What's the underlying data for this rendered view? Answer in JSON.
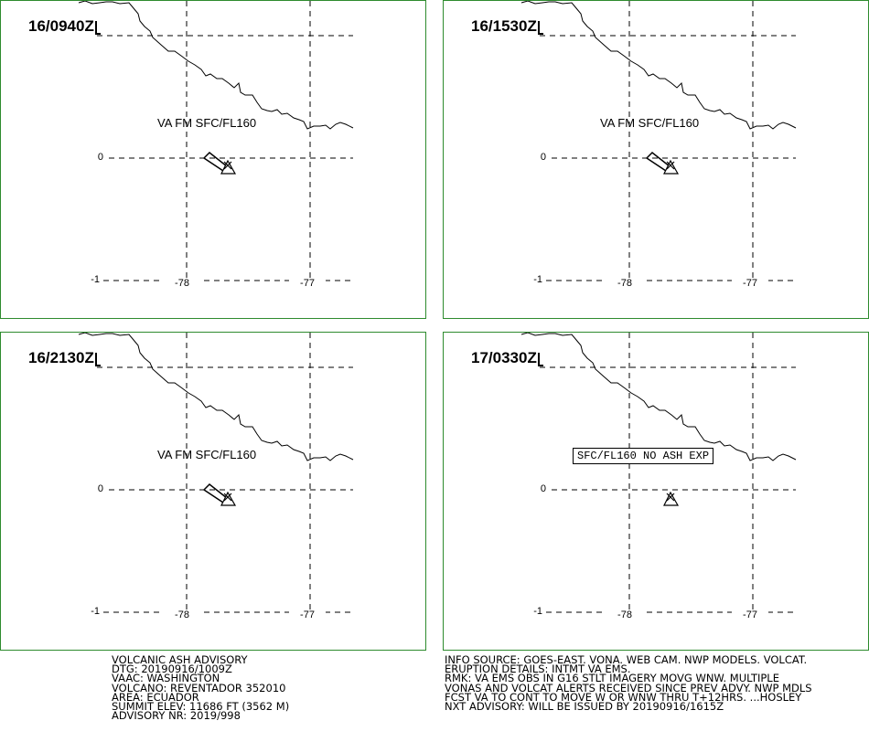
{
  "panels": [
    {
      "time": "16/0940Z",
      "label": "VA FM SFC/FL160",
      "type": "plume"
    },
    {
      "time": "16/1530Z",
      "label": "VA FM SFC/FL160",
      "type": "plume"
    },
    {
      "time": "16/2130Z",
      "label": "VA FM SFC/FL160",
      "type": "plume"
    },
    {
      "time": "17/0330Z",
      "label": "SFC/FL160 NO ASH EXP",
      "type": "noash"
    }
  ],
  "axes": {
    "lat_labels": [
      "0",
      "-1"
    ],
    "lon_labels": [
      "-78",
      "-77"
    ]
  },
  "advisory_left": [
    "VOLCANIC ASH ADVISORY",
    "DTG: 20190916/1009Z",
    "VAAC: WASHINGTON",
    "VOLCANO: REVENTADOR 352010",
    "AREA: ECUADOR",
    "SUMMIT ELEV: 11686 FT (3562 M)",
    "ADVISORY NR: 2019/998"
  ],
  "advisory_right": [
    "INFO SOURCE: GOES-EAST. VONA. WEB CAM. NWP MODELS. VOLCAT.",
    "ERUPTION DETAILS: INTMT VA EMS.",
    "RMK: VA EMS OBS IN G16 STLT IMAGERY MOVG WNW. MULTIPLE",
    "VONAS AND VOLCAT ALERTS RECEIVED SINCE PREV ADVY. NWP MDLS",
    "FCST VA TO CONT TO MOVE W OR WNW THRU T+12HRS. ...HOSLEY",
    "NXT ADVISORY: WILL BE ISSUED BY 20190916/1615Z"
  ],
  "colors": {
    "frame": "#2e8b2e",
    "lines": "#000000"
  }
}
